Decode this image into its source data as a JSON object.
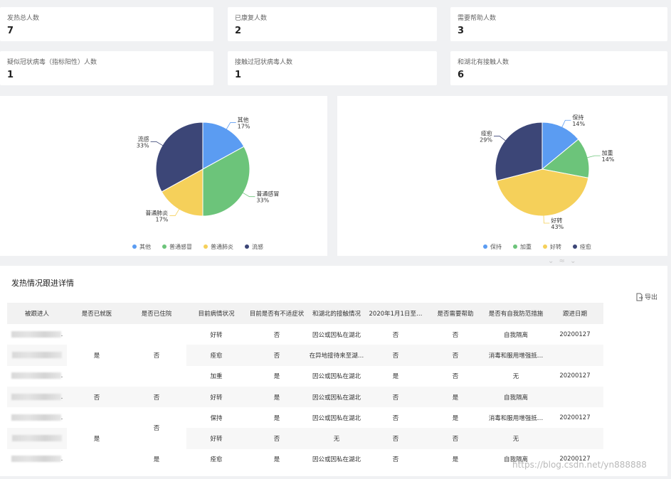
{
  "stats": [
    {
      "label": "发热总人数",
      "value": "7"
    },
    {
      "label": "已康复人数",
      "value": "2"
    },
    {
      "label": "需要帮助人数",
      "value": "3"
    },
    {
      "label": "疑似冠状病毒（指标阳性）人数",
      "value": "1"
    },
    {
      "label": "接触过冠状病毒人数",
      "value": "1"
    },
    {
      "label": "和湖北有接触人数",
      "value": "6"
    }
  ],
  "chart_data": [
    {
      "type": "pie",
      "slices": [
        {
          "name": "其他",
          "value": 17,
          "pct_label": "17%",
          "color": "#5b9cf2"
        },
        {
          "name": "普通感冒",
          "value": 33,
          "pct_label": "33%",
          "color": "#6cc47a"
        },
        {
          "name": "普通肺炎",
          "value": 17,
          "pct_label": "17%",
          "color": "#f5d05a"
        },
        {
          "name": "流感",
          "value": 33,
          "pct_label": "33%",
          "color": "#3c4677"
        }
      ],
      "legend_position": "bottom"
    },
    {
      "type": "pie",
      "slices": [
        {
          "name": "保持",
          "value": 14,
          "pct_label": "14%",
          "color": "#5b9cf2"
        },
        {
          "name": "加重",
          "value": 14,
          "pct_label": "14%",
          "color": "#6cc47a"
        },
        {
          "name": "好转",
          "value": 43,
          "pct_label": "43%",
          "color": "#f5d05a"
        },
        {
          "name": "痊愈",
          "value": 29,
          "pct_label": "29%",
          "color": "#3c4677"
        }
      ],
      "legend_position": "bottom"
    }
  ],
  "table": {
    "title": "发热情况跟进详情",
    "export_label": "导出",
    "headers": [
      "被跟进人",
      "是否已就医",
      "是否已住院",
      "目前病情状况",
      "目前是否有不适症状",
      "和湖北的接触情况",
      "2020年1月1日至…",
      "是否需要帮助",
      "是否有自我防范措施",
      "跟进日期"
    ],
    "rows": [
      {
        "person": ".",
        "condition": "好转",
        "symptom": "否",
        "contact": "因公或因私在湖北",
        "since": "否",
        "help": "否",
        "prevent": "自我隔离",
        "date": "20200127"
      },
      {
        "person": "",
        "condition": "痊愈",
        "symptom": "否",
        "contact": "在异地接待来至湖…",
        "since": "否",
        "help": "否",
        "prevent": "消毒和服用增强抵…",
        "date": ""
      },
      {
        "person": ".",
        "condition": "加重",
        "symptom": "是",
        "contact": "因公或因私在湖北",
        "since": "是",
        "help": "否",
        "prevent": "无",
        "date": "20200127"
      },
      {
        "person": ".",
        "condition": "好转",
        "symptom": "是",
        "contact": "因公或因私在湖北",
        "since": "否",
        "help": "是",
        "prevent": "自我隔离",
        "date": ""
      },
      {
        "person": ".",
        "condition": "保持",
        "symptom": "是",
        "contact": "因公或因私在湖北",
        "since": "否",
        "help": "是",
        "prevent": "消毒和服用增强抵…",
        "date": "20200127"
      },
      {
        "person": "",
        "condition": "好转",
        "symptom": "否",
        "contact": "无",
        "since": "否",
        "help": "否",
        "prevent": "无",
        "date": ""
      },
      {
        "person": ".",
        "condition": "痊愈",
        "symptom": "是",
        "contact": "因公或因私在湖北",
        "since": "否",
        "help": "是",
        "prevent": "自我隔离",
        "date": "20200127"
      }
    ],
    "merged_medical": [
      {
        "value": "是"
      },
      {
        "value": "否"
      },
      {
        "value": "是"
      }
    ],
    "merged_hospital": [
      {
        "value": "否"
      },
      {
        "value": "否"
      },
      {
        "value": "否"
      },
      {
        "value": "是"
      }
    ]
  },
  "watermark": "https://blog.csdn.net/yn888888"
}
